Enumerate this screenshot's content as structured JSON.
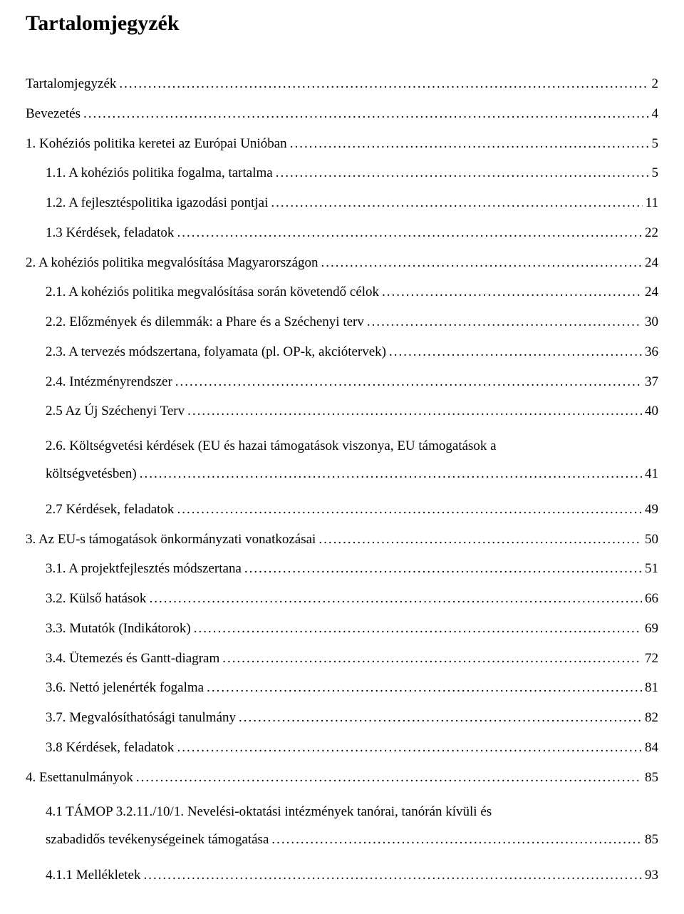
{
  "title": "Tartalomjegyzék",
  "font": {
    "title_size_pt": 22,
    "body_size_pt": 14,
    "family": "Times New Roman",
    "color": "#000000",
    "background": "#ffffff"
  },
  "toc": [
    {
      "label": "Tartalomjegyzék",
      "page": "2",
      "indent": 0
    },
    {
      "label": "Bevezetés",
      "page": "4",
      "indent": 0
    },
    {
      "label": "1. Kohéziós politika keretei az Európai Unióban",
      "page": "5",
      "indent": 0
    },
    {
      "label": "1.1. A kohéziós politika fogalma, tartalma",
      "page": "5",
      "indent": 1
    },
    {
      "label": "1.2. A fejlesztéspolitika igazodási pontjai",
      "page": "11",
      "indent": 1
    },
    {
      "label": "1.3 Kérdések, feladatok",
      "page": "22",
      "indent": 1
    },
    {
      "label": "2. A kohéziós politika megvalósítása Magyarországon",
      "page": "24",
      "indent": 0
    },
    {
      "label": "2.1. A kohéziós politika megvalósítása során követendő célok",
      "page": "24",
      "indent": 1
    },
    {
      "label": "2.2. Előzmények és dilemmák: a Phare és a Széchenyi terv",
      "page": "30",
      "indent": 1
    },
    {
      "label": "2.3. A tervezés módszertana, folyamata (pl. OP-k, akciótervek)",
      "page": "36",
      "indent": 1
    },
    {
      "label": "2.4. Intézményrendszer",
      "page": "37",
      "indent": 1
    },
    {
      "label": "2.5 Az Új Széchenyi Terv",
      "page": "40",
      "indent": 1
    },
    {
      "multiline": true,
      "indent": 1,
      "first": "2.6. Költségvetési kérdések (EU és hazai támogatások viszonya, EU támogatások a",
      "tail_label": "költségvetésben)",
      "page": "41"
    },
    {
      "label": "2.7 Kérdések, feladatok",
      "page": "49",
      "indent": 1
    },
    {
      "label": "3. Az EU-s támogatások önkormányzati vonatkozásai",
      "page": "50",
      "indent": 0
    },
    {
      "label": "3.1. A projektfejlesztés módszertana",
      "page": "51",
      "indent": 1
    },
    {
      "label": "3.2. Külső hatások",
      "page": "66",
      "indent": 1
    },
    {
      "label": "3.3. Mutatók (Indikátorok)",
      "page": "69",
      "indent": 1
    },
    {
      "label": "3.4. Ütemezés és Gantt-diagram",
      "page": "72",
      "indent": 1
    },
    {
      "label": "3.6. Nettó jelenérték fogalma",
      "page": "81",
      "indent": 1
    },
    {
      "label": "3.7. Megvalósíthatósági tanulmány",
      "page": "82",
      "indent": 1
    },
    {
      "label": "3.8 Kérdések, feladatok",
      "page": "84",
      "indent": 1
    },
    {
      "label": "4. Esettanulmányok",
      "page": "85",
      "indent": 0
    },
    {
      "multiline": true,
      "indent": 1,
      "first": "4.1  TÁMOP  3.2.11./10/1.  Nevelési-oktatási  intézmények  tanórai,  tanórán  kívüli  és",
      "tail_label": "szabadidős tevékenységeinek támogatása",
      "page": "85"
    },
    {
      "label": "4.1.1 Mellékletek",
      "page": "93",
      "indent": 1
    }
  ]
}
